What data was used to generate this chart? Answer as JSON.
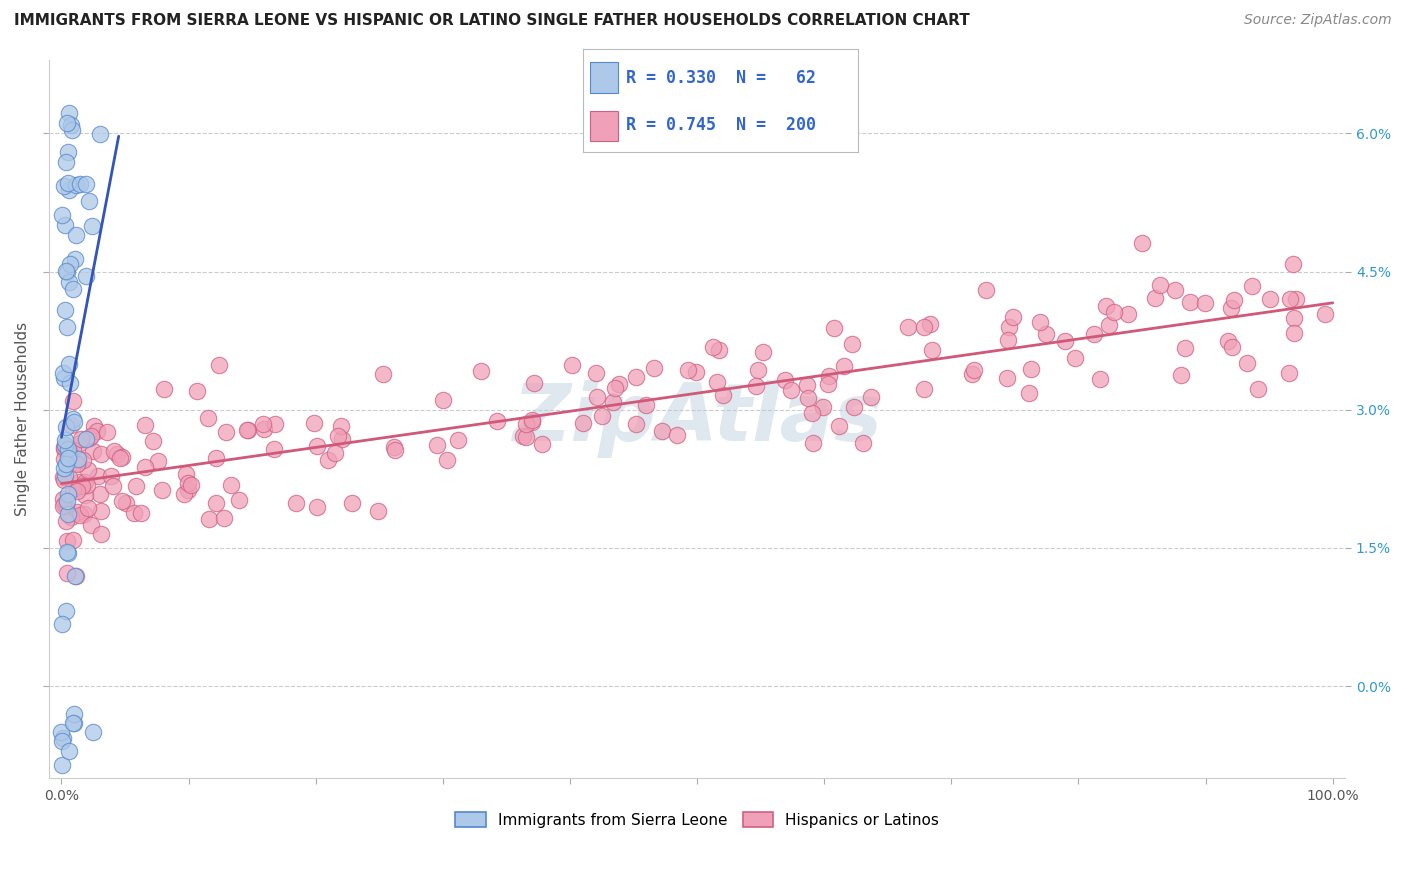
{
  "title": "IMMIGRANTS FROM SIERRA LEONE VS HISPANIC OR LATINO SINGLE FATHER HOUSEHOLDS CORRELATION CHART",
  "source": "Source: ZipAtlas.com",
  "ylabel": "Single Father Households",
  "x_min": -0.01,
  "x_max": 1.01,
  "y_min": -0.01,
  "y_max": 0.068,
  "y_ticks": [
    0.0,
    0.015,
    0.03,
    0.045,
    0.06
  ],
  "y_tick_labels_right": [
    "0.0%",
    "1.5%",
    "3.0%",
    "4.5%",
    "6.0%"
  ],
  "x_ticks": [
    0.0,
    1.0
  ],
  "x_tick_labels": [
    "0.0%",
    "100.0%"
  ],
  "blue_color": "#adc8e8",
  "pink_color": "#f0a0b8",
  "blue_edge_color": "#5588cc",
  "pink_edge_color": "#d06080",
  "blue_line_color": "#3355bb",
  "pink_line_color": "#d05878",
  "legend_R1": "0.330",
  "legend_N1": "62",
  "legend_R2": "0.745",
  "legend_N2": "200",
  "legend_text_color": "#3366cc",
  "watermark_color": "#b8ccdd",
  "background_color": "#ffffff",
  "grid_color": "#cccccc",
  "blue_n": 62,
  "pink_n": 200,
  "title_fontsize": 11,
  "source_fontsize": 10,
  "tick_fontsize": 10,
  "legend_fontsize": 12
}
